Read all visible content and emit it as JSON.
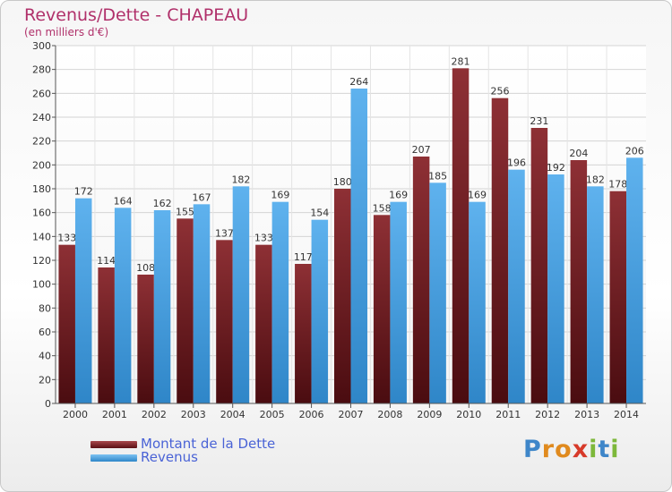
{
  "title": "Revenus/Dette - CHAPEAU",
  "subtitle": "(en milliers d'€)",
  "logo": {
    "p": "P",
    "r": "r",
    "o": "o",
    "x": "x",
    "i1": "i",
    "t": "t",
    "i2": "i"
  },
  "colors": {
    "dette": "#7a1f24",
    "revenus": "#4aa3e6",
    "title": "#b0306a",
    "legend_text": "#4a63d6"
  },
  "legend": [
    {
      "label": "Montant de la Dette",
      "series": "dette"
    },
    {
      "label": "Revenus",
      "series": "revenus"
    }
  ],
  "chart_data": {
    "type": "bar",
    "title": "Revenus/Dette - CHAPEAU",
    "ylabel": "(en milliers d'€)",
    "xlabel": "",
    "ylim": [
      0,
      300
    ],
    "ytick_step": 20,
    "grid": true,
    "legend_position": "bottom-left",
    "categories": [
      "2000",
      "2001",
      "2002",
      "2003",
      "2004",
      "2005",
      "2006",
      "2007",
      "2008",
      "2009",
      "2010",
      "2011",
      "2012",
      "2013",
      "2014"
    ],
    "series": [
      {
        "name": "Montant de la Dette",
        "key": "dette",
        "values": [
          133,
          114,
          108,
          155,
          137,
          133,
          117,
          180,
          158,
          207,
          281,
          256,
          231,
          204,
          178
        ]
      },
      {
        "name": "Revenus",
        "key": "revenus",
        "values": [
          172,
          164,
          162,
          167,
          182,
          169,
          154,
          264,
          169,
          185,
          169,
          196,
          192,
          182,
          206
        ]
      }
    ]
  }
}
